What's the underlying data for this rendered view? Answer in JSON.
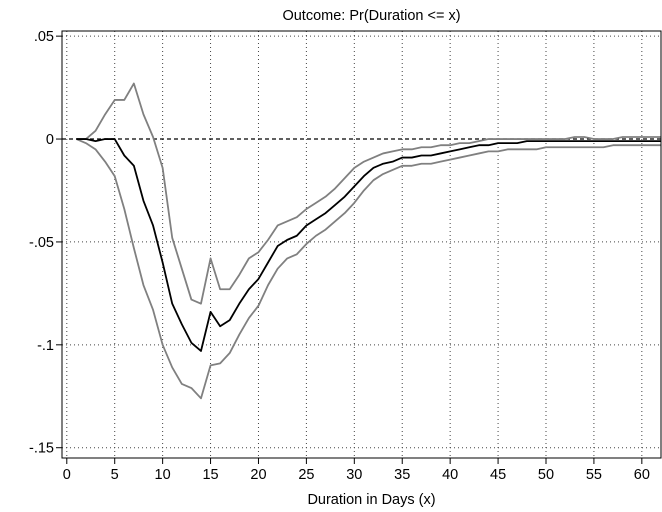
{
  "chart_data": {
    "type": "line",
    "title": "Outcome: Pr(Duration <= x)",
    "xlabel": "Duration in Days (x)",
    "ylabel": "",
    "xlim": [
      -0.5,
      62
    ],
    "ylim": [
      -0.155,
      0.0525
    ],
    "x_ticks": [
      0,
      5,
      10,
      15,
      20,
      25,
      30,
      35,
      40,
      45,
      50,
      55,
      60
    ],
    "x_tick_labels": [
      "0",
      "5",
      "10",
      "15",
      "20",
      "25",
      "30",
      "35",
      "40",
      "45",
      "50",
      "55",
      "60"
    ],
    "y_ticks": [
      0.05,
      0,
      -0.05,
      -0.1,
      -0.15
    ],
    "y_tick_labels": [
      ".05",
      "0",
      "-.05",
      "-.1",
      "-.15"
    ],
    "grid": true,
    "reference_line": {
      "y": 0,
      "style": "dashed"
    },
    "x": [
      1,
      2,
      3,
      4,
      5,
      6,
      7,
      8,
      9,
      10,
      11,
      12,
      13,
      14,
      15,
      16,
      17,
      18,
      19,
      20,
      21,
      22,
      23,
      24,
      25,
      26,
      27,
      28,
      29,
      30,
      31,
      32,
      33,
      34,
      35,
      36,
      37,
      38,
      39,
      40,
      41,
      42,
      43,
      44,
      45,
      46,
      47,
      48,
      49,
      50,
      51,
      52,
      53,
      54,
      55,
      56,
      57,
      58,
      59,
      60,
      61,
      62
    ],
    "series": [
      {
        "color": "#000000",
        "values": [
          0,
          0,
          -0.001,
          0,
          0,
          -0.008,
          -0.013,
          -0.03,
          -0.042,
          -0.06,
          -0.08,
          -0.09,
          -0.099,
          -0.103,
          -0.084,
          -0.091,
          -0.088,
          -0.08,
          -0.073,
          -0.068,
          -0.06,
          -0.052,
          -0.049,
          -0.047,
          -0.042,
          -0.039,
          -0.036,
          -0.032,
          -0.028,
          -0.023,
          -0.018,
          -0.014,
          -0.012,
          -0.011,
          -0.009,
          -0.009,
          -0.008,
          -0.008,
          -0.007,
          -0.006,
          -0.005,
          -0.004,
          -0.003,
          -0.003,
          -0.002,
          -0.002,
          -0.002,
          -0.001,
          -0.001,
          -0.001,
          -0.001,
          -0.001,
          -0.001,
          -0.001,
          -0.001,
          -0.001,
          -0.001,
          -0.001,
          -0.001,
          -0.001,
          -0.001,
          -0.001
        ]
      },
      {
        "color": "#808080",
        "values": [
          0,
          0,
          0.004,
          0.012,
          0.019,
          0.019,
          0.027,
          0.012,
          0.001,
          -0.014,
          -0.048,
          -0.063,
          -0.078,
          -0.08,
          -0.058,
          -0.073,
          -0.073,
          -0.066,
          -0.058,
          -0.055,
          -0.049,
          -0.042,
          -0.04,
          -0.038,
          -0.034,
          -0.031,
          -0.028,
          -0.024,
          -0.019,
          -0.014,
          -0.011,
          -0.009,
          -0.007,
          -0.006,
          -0.005,
          -0.005,
          -0.004,
          -0.004,
          -0.003,
          -0.003,
          -0.002,
          -0.002,
          -0.001,
          0,
          0,
          0,
          0,
          0,
          0,
          0,
          0,
          0,
          0.001,
          0.001,
          0,
          0,
          0,
          0.001,
          0.001,
          0.001,
          0.001,
          0.001
        ]
      },
      {
        "color": "#808080",
        "values": [
          0,
          -0.002,
          -0.005,
          -0.011,
          -0.018,
          -0.034,
          -0.053,
          -0.071,
          -0.083,
          -0.1,
          -0.111,
          -0.119,
          -0.121,
          -0.126,
          -0.11,
          -0.109,
          -0.104,
          -0.095,
          -0.087,
          -0.081,
          -0.071,
          -0.063,
          -0.058,
          -0.056,
          -0.051,
          -0.047,
          -0.044,
          -0.04,
          -0.036,
          -0.031,
          -0.025,
          -0.02,
          -0.017,
          -0.015,
          -0.013,
          -0.013,
          -0.012,
          -0.012,
          -0.011,
          -0.01,
          -0.009,
          -0.008,
          -0.007,
          -0.006,
          -0.006,
          -0.005,
          -0.005,
          -0.005,
          -0.005,
          -0.004,
          -0.004,
          -0.004,
          -0.004,
          -0.004,
          -0.004,
          -0.004,
          -0.003,
          -0.003,
          -0.003,
          -0.003,
          -0.003,
          -0.003
        ]
      }
    ]
  }
}
